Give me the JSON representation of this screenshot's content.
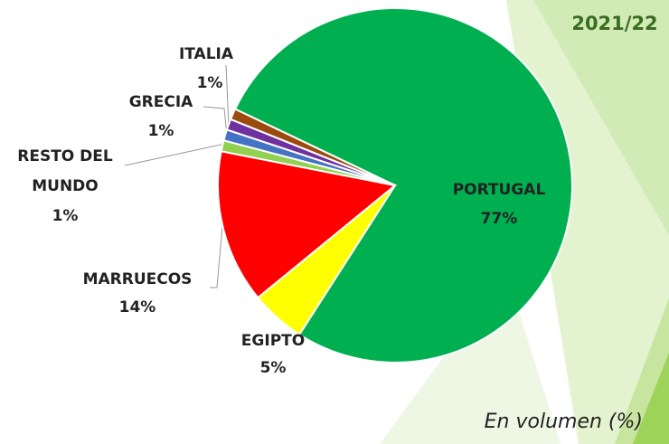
{
  "chart_data": {
    "type": "pie",
    "title": "2021/22",
    "subtitle": "En volumen (%)",
    "categories": [
      "PORTUGAL",
      "EGIPTO",
      "MARRUECOS",
      "RESTO DEL MUNDO",
      "GRECIA",
      "ITALIA",
      null
    ],
    "values": [
      77,
      5,
      14,
      1,
      1,
      1,
      1
    ],
    "value_labels": [
      "77%",
      "5%",
      "14%",
      "1%",
      "1%",
      "1%",
      null
    ],
    "colors": [
      "#00b050",
      "#ffff00",
      "#ff0000",
      "#92d050",
      "#4472c4",
      "#7030a0",
      "#9c4a0e"
    ]
  }
}
